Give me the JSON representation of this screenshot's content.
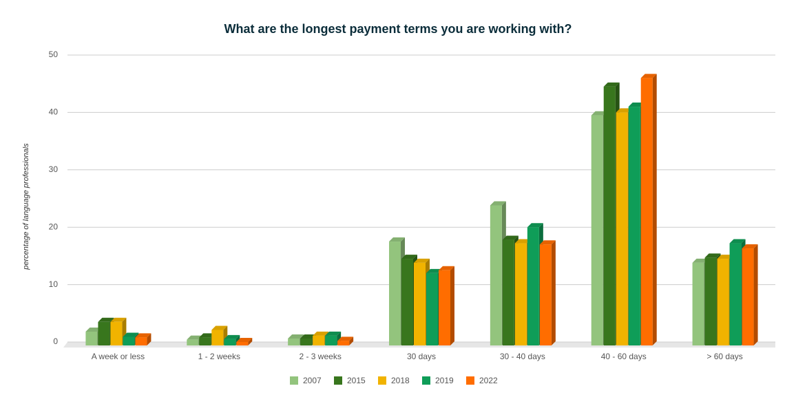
{
  "chart_data": {
    "type": "bar3d",
    "title": "What are the longest payment terms you are working with?",
    "y_label": "percentage of language professionals",
    "categories": [
      "A week or less",
      "1 - 2 weeks",
      "2 - 3 weeks",
      "30 days",
      "30 - 40 days",
      "40 - 60 days",
      "> 60 days"
    ],
    "series": [
      {
        "name": "2007",
        "color": "#93c47d",
        "values": [
          1.8,
          0.4,
          0.6,
          17.5,
          23.8,
          39.5,
          13.8
        ]
      },
      {
        "name": "2015",
        "color": "#38761d",
        "values": [
          3.5,
          0.8,
          0.6,
          14.5,
          17.8,
          44.5,
          14.7
        ]
      },
      {
        "name": "2018",
        "color": "#f1b300",
        "values": [
          3.5,
          2.1,
          1.1,
          13.8,
          17.2,
          40,
          14.5
        ]
      },
      {
        "name": "2019",
        "color": "#0f9d58",
        "values": [
          0.9,
          0.5,
          1.1,
          12,
          20,
          41,
          17.2
        ]
      },
      {
        "name": "2022",
        "color": "#ff6d00",
        "values": [
          0.8,
          0,
          0.2,
          12.5,
          17,
          46,
          16.3
        ]
      }
    ],
    "ylim": [
      0,
      50
    ],
    "yticks": [
      0,
      10,
      20,
      30,
      40,
      50
    ],
    "grid": true,
    "legend": "bottom"
  }
}
